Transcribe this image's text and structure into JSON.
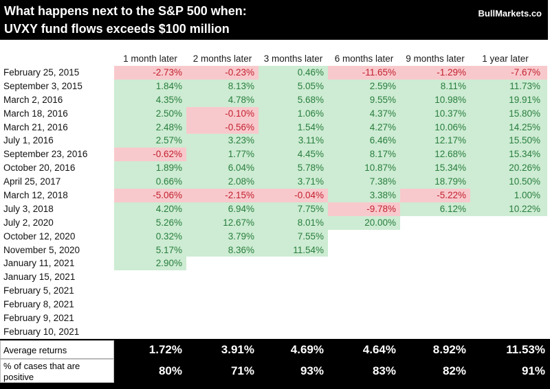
{
  "header": {
    "title_line1": "What happens next to the S&P 500 when:",
    "title_line2": "UVXY fund flows exceeds $100 million",
    "brand": "BullMarkets.co"
  },
  "table": {
    "columns": [
      "1 month later",
      "2 months later",
      "3 months later",
      "6 months later",
      "9 months later",
      "1 year later"
    ],
    "rows": [
      {
        "date": "February 25, 2015",
        "values": [
          "-2.73%",
          "-0.23%",
          "0.46%",
          "-11.65%",
          "-1.29%",
          "-7.67%"
        ]
      },
      {
        "date": "September 3, 2015",
        "values": [
          "1.84%",
          "8.13%",
          "5.05%",
          "2.59%",
          "8.11%",
          "11.73%"
        ]
      },
      {
        "date": "March 2, 2016",
        "values": [
          "4.35%",
          "4.78%",
          "5.68%",
          "9.55%",
          "10.98%",
          "19.91%"
        ]
      },
      {
        "date": "March 18, 2016",
        "values": [
          "2.50%",
          "-0.10%",
          "1.06%",
          "4.37%",
          "10.37%",
          "15.80%"
        ]
      },
      {
        "date": "March 21, 2016",
        "values": [
          "2.48%",
          "-0.56%",
          "1.54%",
          "4.27%",
          "10.06%",
          "14.25%"
        ]
      },
      {
        "date": "July 1, 2016",
        "values": [
          "2.57%",
          "3.23%",
          "3.11%",
          "6.46%",
          "12.17%",
          "15.50%"
        ]
      },
      {
        "date": "September 23, 2016",
        "values": [
          "-0.62%",
          "1.77%",
          "4.45%",
          "8.17%",
          "12.68%",
          "15.34%"
        ]
      },
      {
        "date": "October 20, 2016",
        "values": [
          "1.89%",
          "6.04%",
          "5.78%",
          "10.87%",
          "15.34%",
          "20.26%"
        ]
      },
      {
        "date": "April 25, 2017",
        "values": [
          "0.66%",
          "2.08%",
          "3.71%",
          "7.38%",
          "18.79%",
          "10.50%"
        ]
      },
      {
        "date": "March 12, 2018",
        "values": [
          "-5.06%",
          "-2.15%",
          "-0.04%",
          "3.38%",
          "-5.22%",
          "1.00%"
        ]
      },
      {
        "date": "July 3, 2018",
        "values": [
          "4.20%",
          "6.94%",
          "7.75%",
          "-9.78%",
          "6.12%",
          "10.22%"
        ]
      },
      {
        "date": "July 2, 2020",
        "values": [
          "5.26%",
          "12.67%",
          "8.01%",
          "20.00%",
          "",
          ""
        ]
      },
      {
        "date": "October 12, 2020",
        "values": [
          "0.32%",
          "3.79%",
          "7.55%",
          "",
          "",
          ""
        ]
      },
      {
        "date": "November 5, 2020",
        "values": [
          "5.17%",
          "8.36%",
          "11.54%",
          "",
          "",
          ""
        ]
      },
      {
        "date": "January 11, 2021",
        "values": [
          "2.90%",
          "",
          "",
          "",
          "",
          ""
        ]
      },
      {
        "date": "January 15, 2021",
        "values": [
          "",
          "",
          "",
          "",
          "",
          ""
        ]
      },
      {
        "date": "February 5, 2021",
        "values": [
          "",
          "",
          "",
          "",
          "",
          ""
        ]
      },
      {
        "date": "February 8, 2021",
        "values": [
          "",
          "",
          "",
          "",
          "",
          ""
        ]
      },
      {
        "date": "February 9, 2021",
        "values": [
          "",
          "",
          "",
          "",
          "",
          ""
        ]
      },
      {
        "date": "February 10, 2021",
        "values": [
          "",
          "",
          "",
          "",
          "",
          ""
        ]
      }
    ]
  },
  "summary": {
    "average_label": "Average returns",
    "average_values": [
      "1.72%",
      "3.91%",
      "4.69%",
      "4.64%",
      "8.92%",
      "11.53%"
    ],
    "positive_label": "% of cases that are positive",
    "positive_values": [
      "80%",
      "71%",
      "93%",
      "83%",
      "82%",
      "91%"
    ]
  },
  "colors": {
    "positive_bg": "#cdecd3",
    "positive_text": "#287d3c",
    "negative_bg": "#f8c9cc",
    "negative_text": "#c2202f",
    "header_bg": "#000000",
    "header_text": "#ffffff"
  },
  "chart_data": {
    "type": "table",
    "title": "What happens next to the S&P 500 when: UVXY fund flows exceeds $100 million",
    "columns": [
      "1 month later",
      "2 months later",
      "3 months later",
      "6 months later",
      "9 months later",
      "1 year later"
    ],
    "row_labels": [
      "February 25, 2015",
      "September 3, 2015",
      "March 2, 2016",
      "March 18, 2016",
      "March 21, 2016",
      "July 1, 2016",
      "September 23, 2016",
      "October 20, 2016",
      "April 25, 2017",
      "March 12, 2018",
      "July 3, 2018",
      "July 2, 2020",
      "October 12, 2020",
      "November 5, 2020",
      "January 11, 2021",
      "January 15, 2021",
      "February 5, 2021",
      "February 8, 2021",
      "February 9, 2021",
      "February 10, 2021"
    ],
    "values_percent": [
      [
        -2.73,
        -0.23,
        0.46,
        -11.65,
        -1.29,
        -7.67
      ],
      [
        1.84,
        8.13,
        5.05,
        2.59,
        8.11,
        11.73
      ],
      [
        4.35,
        4.78,
        5.68,
        9.55,
        10.98,
        19.91
      ],
      [
        2.5,
        -0.1,
        1.06,
        4.37,
        10.37,
        15.8
      ],
      [
        2.48,
        -0.56,
        1.54,
        4.27,
        10.06,
        14.25
      ],
      [
        2.57,
        3.23,
        3.11,
        6.46,
        12.17,
        15.5
      ],
      [
        -0.62,
        1.77,
        4.45,
        8.17,
        12.68,
        15.34
      ],
      [
        1.89,
        6.04,
        5.78,
        10.87,
        15.34,
        20.26
      ],
      [
        0.66,
        2.08,
        3.71,
        7.38,
        18.79,
        10.5
      ],
      [
        -5.06,
        -2.15,
        -0.04,
        3.38,
        -5.22,
        1.0
      ],
      [
        4.2,
        6.94,
        7.75,
        -9.78,
        6.12,
        10.22
      ],
      [
        5.26,
        12.67,
        8.01,
        20.0,
        null,
        null
      ],
      [
        0.32,
        3.79,
        7.55,
        null,
        null,
        null
      ],
      [
        5.17,
        8.36,
        11.54,
        null,
        null,
        null
      ],
      [
        2.9,
        null,
        null,
        null,
        null,
        null
      ],
      [
        null,
        null,
        null,
        null,
        null,
        null
      ],
      [
        null,
        null,
        null,
        null,
        null,
        null
      ],
      [
        null,
        null,
        null,
        null,
        null,
        null
      ],
      [
        null,
        null,
        null,
        null,
        null,
        null
      ],
      [
        null,
        null,
        null,
        null,
        null,
        null
      ]
    ],
    "average_returns_percent": [
      1.72,
      3.91,
      4.69,
      4.64,
      8.92,
      11.53
    ],
    "percent_of_cases_positive": [
      80,
      71,
      93,
      83,
      82,
      91
    ],
    "legend": "green fill = positive return, red fill = negative return"
  }
}
